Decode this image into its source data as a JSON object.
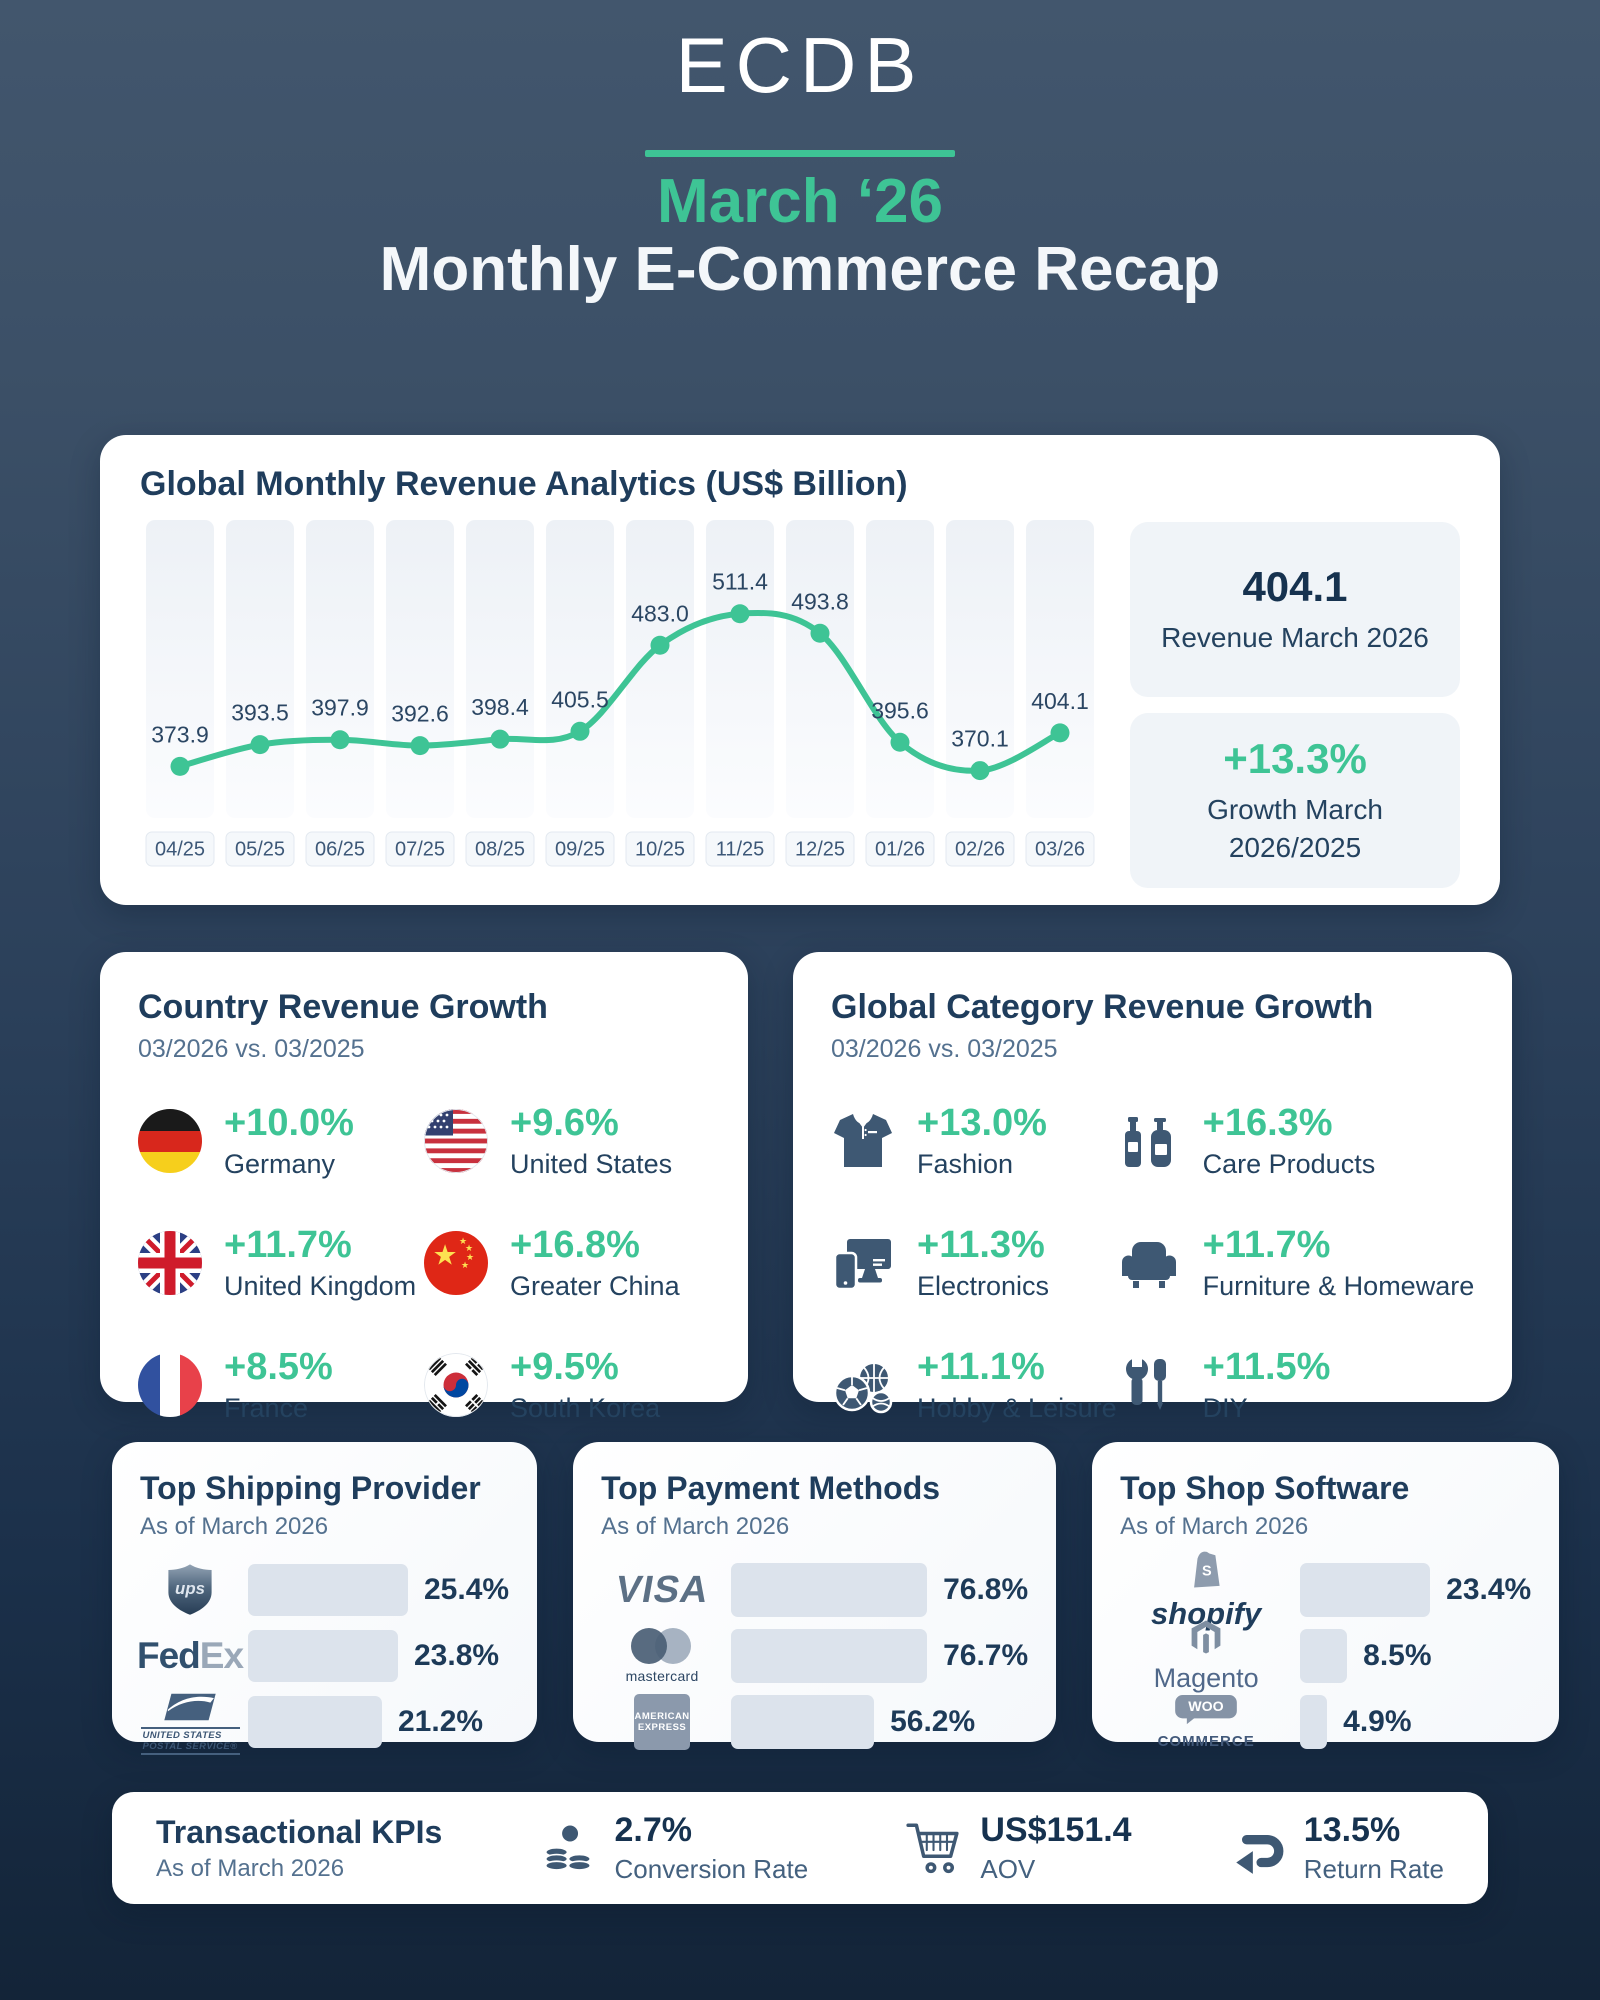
{
  "header": {
    "brand": "ECDB",
    "period": "March ‘26",
    "title": "Monthly E-Commerce Recap"
  },
  "colors": {
    "accent_green": "#3ec495",
    "heading_navy": "#1f3d5c",
    "subtitle_slate": "#54718f",
    "icon_slate": "#3e5873",
    "bar_gray": "#dce3ec",
    "stat_box_bg": "#f0f4f8",
    "background_top": "#42566d",
    "background_bottom": "#132438"
  },
  "chart_data": [
    {
      "id": "revenue",
      "type": "line",
      "title": "Global Monthly Revenue Analytics (US$ Billion)",
      "x": [
        "04/25",
        "05/25",
        "06/25",
        "07/25",
        "08/25",
        "09/25",
        "10/25",
        "11/25",
        "12/25",
        "01/26",
        "02/26",
        "03/26"
      ],
      "values": [
        373.9,
        393.5,
        397.9,
        392.6,
        398.4,
        405.5,
        483.0,
        511.4,
        493.8,
        395.6,
        370.1,
        404.1
      ],
      "ylim": [
        340,
        540
      ],
      "grid": false,
      "legend": false,
      "line_color": "#3ec495",
      "annotations": [
        {
          "text": "404.1",
          "label": "Revenue March 2026"
        },
        {
          "text": "+13.3%",
          "label": "Growth March 2026/2025"
        }
      ]
    },
    {
      "id": "shipping",
      "type": "bar",
      "title": "Top Shipping Provider",
      "subtitle": "As of March 2026",
      "categories": [
        "UPS",
        "FedEx",
        "USPS"
      ],
      "values": [
        25.4,
        23.8,
        21.2
      ],
      "value_labels": [
        "25.4%",
        "23.8%",
        "21.2%"
      ]
    },
    {
      "id": "payments",
      "type": "bar",
      "title": "Top Payment Methods",
      "subtitle": "As of March 2026",
      "categories": [
        "Visa",
        "Mastercard",
        "American Express"
      ],
      "values": [
        76.8,
        76.7,
        56.2
      ],
      "value_labels": [
        "76.8%",
        "76.7%",
        "56.2%"
      ]
    },
    {
      "id": "software",
      "type": "bar",
      "title": "Top Shop Software",
      "subtitle": "As of March 2026",
      "categories": [
        "Shopify",
        "Magento",
        "WooCommerce"
      ],
      "values": [
        23.4,
        8.5,
        4.9
      ],
      "value_labels": [
        "23.4%",
        "8.5%",
        "4.9%"
      ]
    }
  ],
  "countries": {
    "title": "Country Revenue Growth",
    "subtitle": "03/2026 vs. 03/2025",
    "items": [
      {
        "name": "Germany",
        "growth": "+10.0%"
      },
      {
        "name": "United States",
        "growth": "+9.6%"
      },
      {
        "name": "United Kingdom",
        "growth": "+11.7%"
      },
      {
        "name": "Greater China",
        "growth": "+16.8%"
      },
      {
        "name": "France",
        "growth": "+8.5%"
      },
      {
        "name": "South Korea",
        "growth": "+9.5%"
      }
    ]
  },
  "categories": {
    "title": "Global Category Revenue Growth",
    "subtitle": "03/2026 vs. 03/2025",
    "items": [
      {
        "name": "Fashion",
        "growth": "+13.0%"
      },
      {
        "name": "Care Products",
        "growth": "+16.3%"
      },
      {
        "name": "Electronics",
        "growth": "+11.3%"
      },
      {
        "name": "Furniture & Homeware",
        "growth": "+11.7%"
      },
      {
        "name": "Hobby & Leisure",
        "growth": "+11.1%"
      },
      {
        "name": "DIY",
        "growth": "+11.5%"
      }
    ]
  },
  "logos": {
    "ups": "ups",
    "fedex_fed": "Fed",
    "fedex_ex": "Ex",
    "usps_line1": "UNITED STATES",
    "usps_line2": "POSTAL SERVICE®",
    "visa": "VISA",
    "mastercard": "mastercard",
    "amex_line1": "AMERICAN",
    "amex_line2": "EXPRESS",
    "shopify": "shopify",
    "shopify_s": "S",
    "magento": "Magento",
    "woo": "WOO",
    "woo_commerce": "COMMERCE"
  },
  "kpis": {
    "title": "Transactional KPIs",
    "subtitle": "As of March 2026",
    "items": [
      {
        "value": "2.7%",
        "label": "Conversion Rate"
      },
      {
        "value": "US$151.4",
        "label": "AOV"
      },
      {
        "value": "13.5%",
        "label": "Return Rate"
      }
    ]
  }
}
